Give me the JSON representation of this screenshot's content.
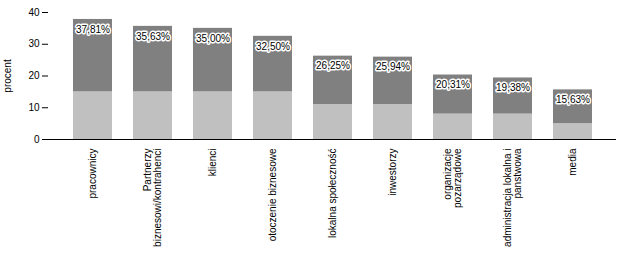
{
  "chart_data": {
    "type": "bar",
    "stacked": true,
    "categories": [
      "pracownicy",
      "Partnerzy\nbiznesowi/kontrahenci",
      "klienci",
      "otoczenie biznesowe",
      "lokalna społeczność",
      "inwestorzy",
      "organizacje\npozarządowe",
      "administracja lokalna i\npanstwowa",
      "media"
    ],
    "series": [
      {
        "color": "#c0c0c0",
        "values": [
          15,
          15,
          15,
          15,
          11,
          11,
          8,
          8,
          5
        ]
      },
      {
        "color": "#808080",
        "values": [
          22.81,
          20.63,
          20.0,
          17.5,
          15.25,
          14.94,
          12.31,
          11.38,
          10.63
        ]
      }
    ],
    "totals": [
      37.81,
      35.63,
      35.0,
      32.5,
      26.25,
      25.94,
      20.31,
      19.38,
      15.63
    ],
    "value_labels": [
      "37,81%",
      "35,63%",
      "35,00%",
      "32,50%",
      "26,25%",
      "25,94%",
      "20,31%",
      "19,38%",
      "15,63%"
    ],
    "data_labels": true,
    "ylabel": "procent",
    "ylim": [
      0,
      40
    ],
    "yticks": [
      0,
      10,
      20,
      30,
      40
    ],
    "grid": false
  }
}
